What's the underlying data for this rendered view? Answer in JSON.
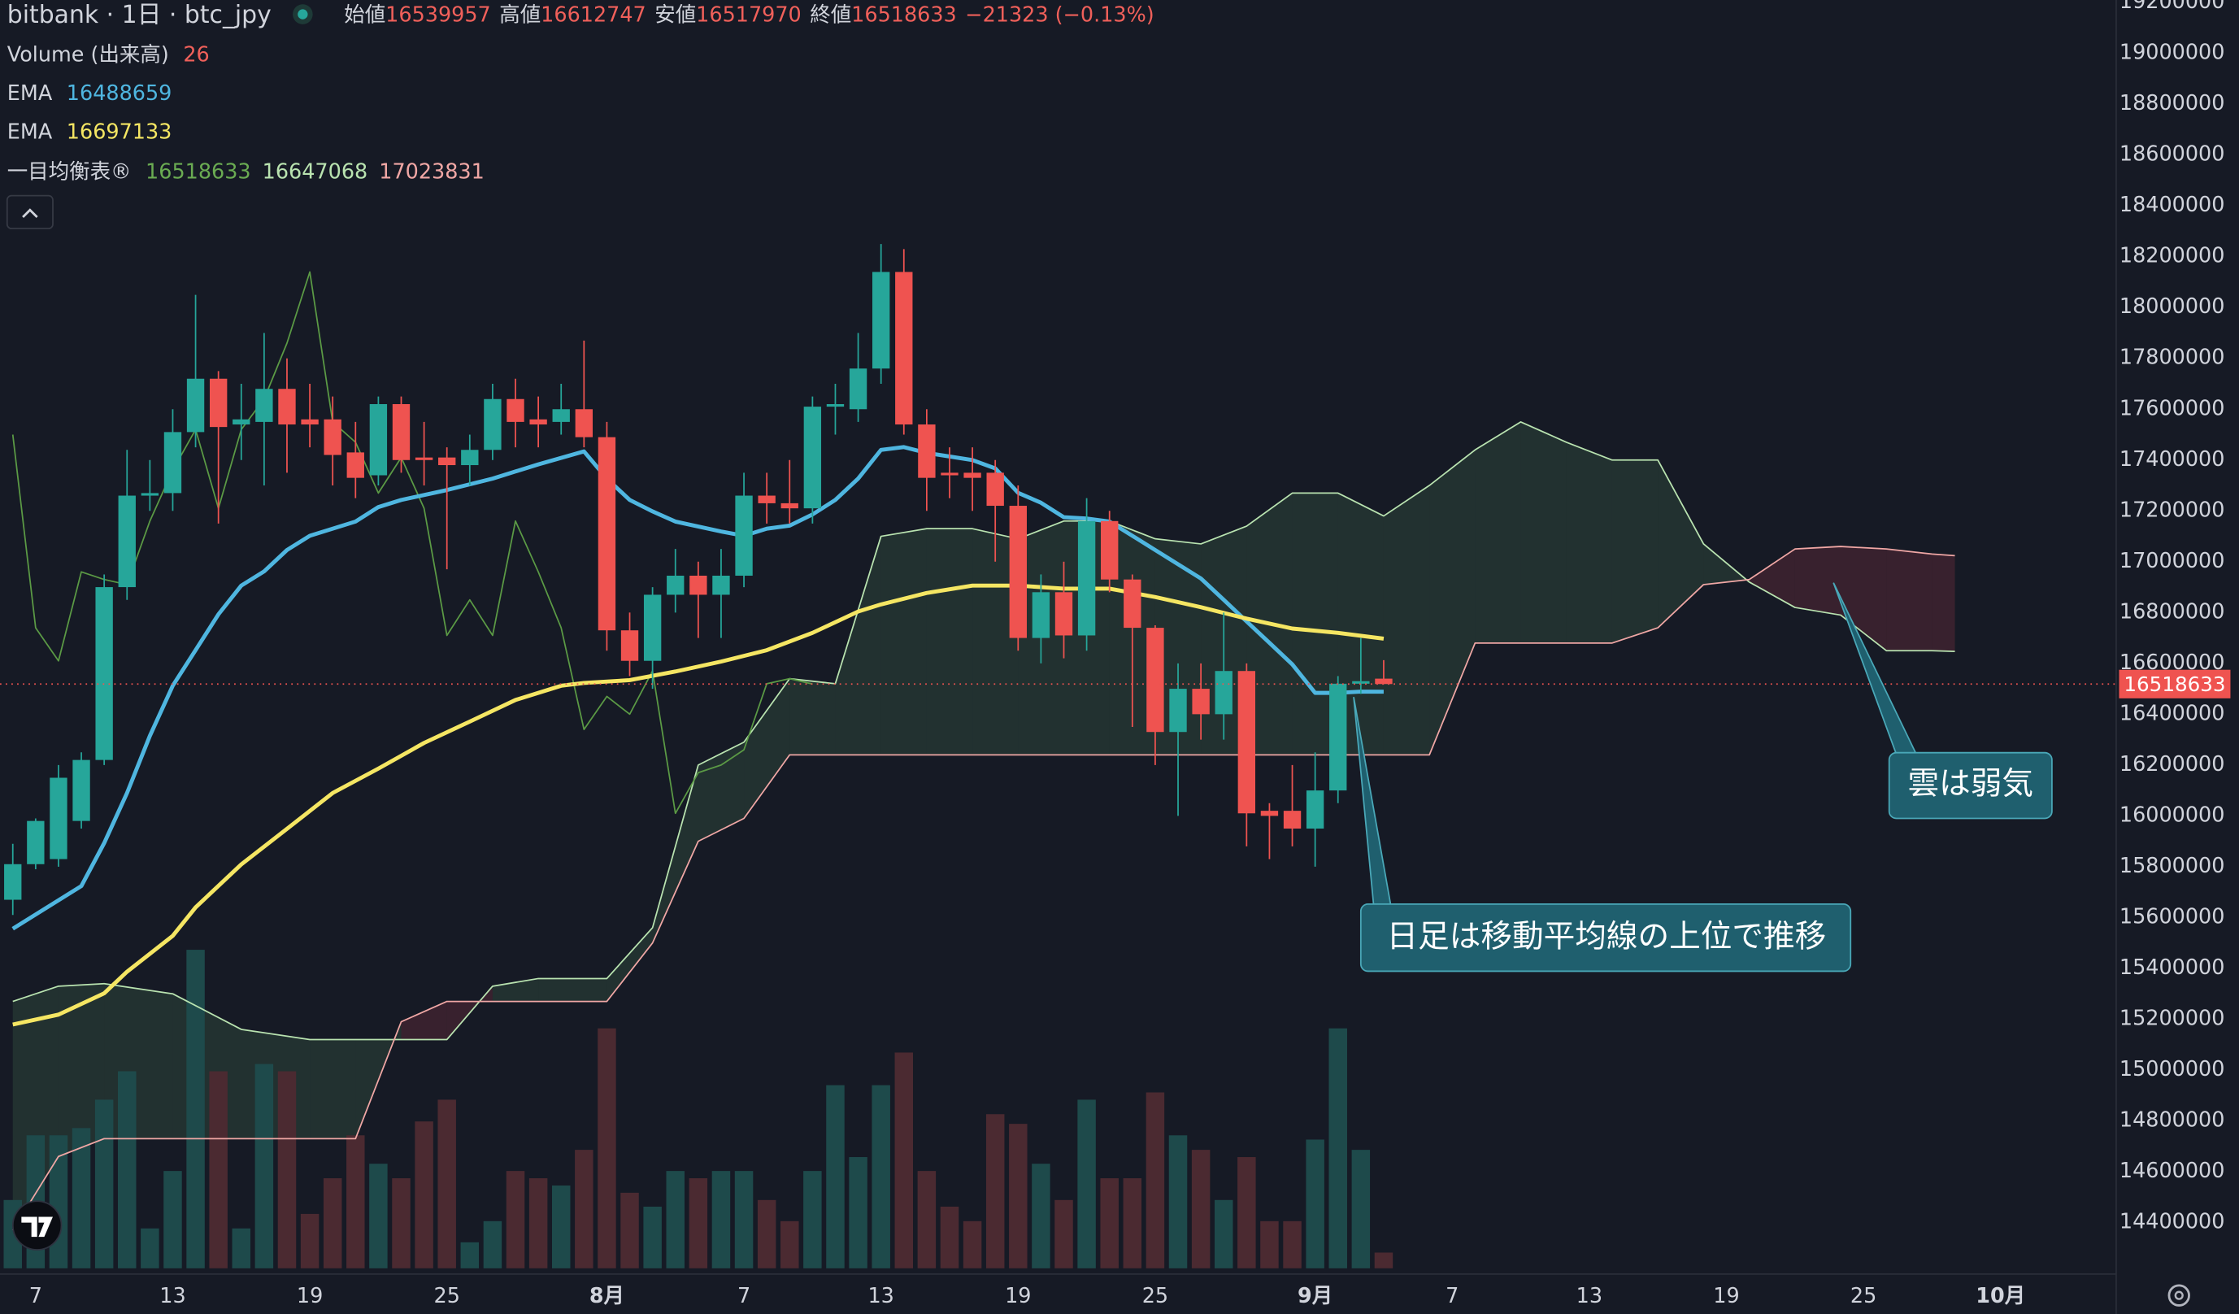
{
  "header": {
    "title": "bitbank · 1日 · btc_jpy",
    "open_label": "始値",
    "high_label": "高値",
    "low_label": "安値",
    "close_label": "終値",
    "change": "−21323 (−0.13%)",
    "volume_label": "Volume (出来高)"
  },
  "chart_data": {
    "type": "candlestick",
    "x": [
      5,
      6,
      7,
      8,
      9,
      10,
      11,
      12,
      13,
      14,
      15,
      16,
      17,
      18,
      19,
      20,
      21,
      22,
      23,
      24,
      25,
      26,
      27,
      28,
      29,
      30,
      31,
      32,
      33,
      34,
      35,
      36,
      37,
      38,
      39,
      40,
      41,
      42,
      43,
      44,
      45,
      46,
      47,
      48,
      49,
      50,
      51,
      52,
      53,
      54,
      55,
      56,
      57,
      58,
      59,
      60,
      61,
      62,
      63,
      64,
      65
    ],
    "open": [
      15670000,
      15810000,
      15830000,
      15980000,
      16220000,
      16900000,
      17260000,
      17270000,
      17510000,
      17720000,
      17540000,
      17550000,
      17680000,
      17560000,
      17560000,
      17430000,
      17340000,
      17620000,
      17410000,
      17410000,
      17380000,
      17440000,
      17640000,
      17560000,
      17550000,
      17600000,
      17490000,
      16730000,
      16610000,
      16870000,
      16945000,
      16870000,
      16945000,
      17260000,
      17230000,
      17210000,
      17610000,
      17600000,
      17760000,
      18140000,
      17540000,
      17350000,
      17350000,
      17350000,
      17220000,
      16700000,
      16880000,
      16710000,
      17160000,
      16930000,
      16740000,
      16330000,
      16500000,
      16400000,
      16570000,
      16020000,
      16020000,
      15950000,
      16100000,
      16520000,
      16539957
    ],
    "high": [
      15890000,
      15990000,
      16200000,
      16250000,
      16950000,
      17440000,
      17400000,
      17600000,
      18050000,
      17750000,
      17700000,
      17900000,
      17800000,
      17700000,
      17650000,
      17550000,
      17650000,
      17650000,
      17550000,
      17450000,
      17500000,
      17700000,
      17720000,
      17650000,
      17700000,
      17870000,
      17550000,
      16800000,
      16900000,
      17050000,
      17000000,
      17050000,
      17350000,
      17350000,
      17400000,
      17650000,
      17700000,
      17900000,
      18250000,
      18230000,
      17600000,
      17450000,
      17450000,
      17400000,
      17300000,
      16950000,
      17000000,
      17250000,
      17200000,
      16950000,
      16750000,
      16600000,
      16600000,
      16800000,
      16600000,
      16050000,
      16200000,
      16250000,
      16550000,
      16700000,
      16612747
    ],
    "low": [
      15610000,
      15790000,
      15800000,
      15950000,
      16200000,
      16850000,
      17200000,
      17200000,
      17450000,
      17150000,
      17400000,
      17300000,
      17350000,
      17450000,
      17300000,
      17250000,
      17300000,
      17350000,
      17300000,
      16970000,
      17300000,
      17400000,
      17450000,
      17450000,
      17500000,
      17450000,
      16650000,
      16550000,
      16500000,
      16800000,
      16700000,
      16700000,
      16900000,
      17150000,
      17150000,
      17150000,
      17500000,
      17550000,
      17700000,
      17500000,
      17200000,
      17250000,
      17200000,
      17000000,
      16650000,
      16600000,
      16620000,
      16650000,
      16880000,
      16350000,
      16200000,
      16000000,
      16300000,
      16300000,
      15880000,
      15830000,
      15880000,
      15800000,
      16050000,
      16480000,
      16517970
    ],
    "close": [
      15810000,
      15980000,
      16150000,
      16220000,
      16900000,
      17260000,
      17270000,
      17510000,
      17720000,
      17530000,
      17560000,
      17680000,
      17540000,
      17540000,
      17420000,
      17330000,
      17620000,
      17400000,
      17400000,
      17380000,
      17440000,
      17640000,
      17550000,
      17540000,
      17600000,
      17490000,
      16730000,
      16610000,
      16870000,
      16945000,
      16870000,
      16945000,
      17260000,
      17230000,
      17210000,
      17610000,
      17620000,
      17760000,
      18140000,
      17540000,
      17330000,
      17340000,
      17330000,
      17220000,
      16700000,
      16880000,
      16710000,
      17160000,
      16930000,
      16740000,
      16330000,
      16500000,
      16400000,
      16570000,
      16010000,
      16000000,
      15950000,
      16100000,
      16520000,
      16530000,
      16518633
    ],
    "volume": [
      113,
      220,
      220,
      232,
      279,
      326,
      66,
      161,
      527,
      326,
      66,
      338,
      326,
      90,
      149,
      220,
      173,
      149,
      243,
      279,
      43,
      78,
      161,
      149,
      137,
      196,
      397,
      125,
      102,
      161,
      149,
      161,
      161,
      113,
      78,
      161,
      303,
      184,
      303,
      357,
      161,
      102,
      78,
      255,
      239,
      173,
      113,
      279,
      149,
      149,
      291,
      220,
      196,
      113,
      184,
      78,
      78,
      213,
      397,
      196,
      26
    ],
    "up_color": "#26a69a",
    "down_color": "#ef5350",
    "volume_up_color": "#1e4a4b",
    "volume_down_color": "#4b2a31",
    "series": [
      {
        "name": "EMA",
        "color": "#4fb6e0",
        "x": [
          5,
          8,
          9,
          10,
          11,
          12,
          13,
          14,
          15,
          16,
          17,
          18,
          19,
          20,
          21,
          22,
          24,
          26,
          28,
          30,
          31,
          32,
          33,
          34,
          36,
          37,
          38,
          39,
          40,
          41,
          42,
          43,
          44,
          45,
          47,
          48,
          49,
          50,
          51,
          52,
          53,
          54,
          55,
          56,
          57,
          58,
          59,
          60,
          61,
          62,
          63,
          64,
          65
        ],
        "values": [
          15556000,
          15724000,
          15893000,
          16090000,
          16315000,
          16512000,
          16652000,
          16793000,
          16906000,
          16962000,
          17046000,
          17102000,
          17130000,
          17158000,
          17215000,
          17243000,
          17282000,
          17327000,
          17383000,
          17434000,
          17327000,
          17243000,
          17198000,
          17158000,
          17119000,
          17102000,
          17130000,
          17142000,
          17186000,
          17243000,
          17327000,
          17440000,
          17451000,
          17428000,
          17400000,
          17367000,
          17271000,
          17232000,
          17175000,
          17170000,
          17158000,
          17102000,
          17046000,
          16990000,
          16934000,
          16850000,
          16765000,
          16681000,
          16596000,
          16484000,
          16484000,
          16489000,
          16488659
        ]
      },
      {
        "name": "EMA",
        "color": "#f5e663",
        "x": [
          5,
          7,
          9,
          10,
          12,
          13,
          15,
          17,
          19,
          21,
          23,
          25,
          27,
          29,
          30,
          32,
          34,
          36,
          38,
          40,
          42,
          43,
          45,
          47,
          49,
          51,
          53,
          55,
          57,
          59,
          61,
          63,
          65
        ],
        "values": [
          15179000,
          15218000,
          15302000,
          15387000,
          15528000,
          15640000,
          15809000,
          15949000,
          16090000,
          16186000,
          16287000,
          16371000,
          16456000,
          16512000,
          16523000,
          16534000,
          16568000,
          16607000,
          16652000,
          16720000,
          16804000,
          16832000,
          16877000,
          16906000,
          16906000,
          16894000,
          16894000,
          16861000,
          16821000,
          16776000,
          16737000,
          16720000,
          16697133
        ]
      }
    ],
    "ichimoku": {
      "name": "一目均衡表®",
      "cloud_up_color": "rgba(67,110,80,0.28)",
      "cloud_down_color": "rgba(120,50,62,0.35)",
      "lagging": {
        "color": "#5b9a45",
        "x": [
          5,
          6,
          7,
          8,
          9,
          10,
          11,
          12,
          13,
          14,
          15,
          16,
          17,
          18,
          19,
          20,
          21,
          22,
          23,
          24,
          25,
          26,
          27,
          28,
          29,
          30,
          31,
          32,
          33,
          34,
          35,
          36,
          37,
          38,
          39,
          40
        ],
        "values": [
          17500000,
          16740000,
          16610000,
          16960000,
          16930000,
          16910000,
          17160000,
          17360000,
          17520000,
          17210000,
          17520000,
          17640000,
          17860000,
          18140000,
          17550000,
          17470000,
          17270000,
          17410000,
          17210000,
          16710000,
          16850000,
          16710000,
          17160000,
          16960000,
          16740000,
          16340000,
          16470000,
          16400000,
          16570000,
          16010000,
          16170000,
          16200000,
          16260000,
          16520000,
          16540000,
          16518633
        ]
      },
      "span_a": {
        "color": "#b9e3b0",
        "x": [
          5,
          7,
          9,
          12,
          15,
          18,
          20,
          22,
          24,
          26,
          28,
          31,
          33,
          35,
          37,
          39,
          41,
          43,
          45,
          47,
          49,
          51,
          53,
          55,
          57,
          59,
          61,
          63,
          65,
          67,
          69,
          71,
          73,
          75,
          77,
          79,
          81,
          83,
          85,
          87,
          89,
          90
        ],
        "values": [
          15270000,
          15330000,
          15340000,
          15300000,
          15160000,
          15120000,
          15120000,
          15120000,
          15120000,
          15330000,
          15360000,
          15360000,
          15560000,
          16200000,
          16290000,
          16540000,
          16520000,
          17100000,
          17130000,
          17130000,
          17090000,
          17160000,
          17160000,
          17090000,
          17070000,
          17140000,
          17270000,
          17270000,
          17180000,
          17300000,
          17440000,
          17550000,
          17470000,
          17400000,
          17400000,
          17070000,
          16920000,
          16820000,
          16790000,
          16650000,
          16650000,
          16647068
        ]
      },
      "span_b": {
        "color": "#f0a7a5",
        "x": [
          5,
          7,
          9,
          12,
          15,
          18,
          20,
          22,
          24,
          26,
          28,
          31,
          33,
          35,
          37,
          39,
          41,
          43,
          45,
          47,
          49,
          51,
          53,
          55,
          57,
          59,
          61,
          63,
          65,
          67,
          69,
          71,
          73,
          75,
          77,
          79,
          81,
          83,
          85,
          87,
          89,
          90
        ],
        "values": [
          14370000,
          14660000,
          14730000,
          14730000,
          14730000,
          14730000,
          14730000,
          15190000,
          15270000,
          15270000,
          15270000,
          15270000,
          15500000,
          15900000,
          15990000,
          16240000,
          16240000,
          16240000,
          16240000,
          16240000,
          16240000,
          16240000,
          16240000,
          16240000,
          16240000,
          16240000,
          16240000,
          16240000,
          16240000,
          16240000,
          16680000,
          16680000,
          16680000,
          16680000,
          16740000,
          16910000,
          16930000,
          17050000,
          17060000,
          17050000,
          17030000,
          17023831
        ]
      }
    },
    "xlim": [
      4.44,
      97.06
    ],
    "xticks": [
      {
        "value": 6,
        "label": "7"
      },
      {
        "value": 12,
        "label": "13"
      },
      {
        "value": 18,
        "label": "19"
      },
      {
        "value": 24,
        "label": "25"
      },
      {
        "value": 31,
        "label": "8月"
      },
      {
        "value": 37,
        "label": "7"
      },
      {
        "value": 43,
        "label": "13"
      },
      {
        "value": 49,
        "label": "19"
      },
      {
        "value": 55,
        "label": "25"
      },
      {
        "value": 62,
        "label": "9月"
      },
      {
        "value": 68,
        "label": "7"
      },
      {
        "value": 74,
        "label": "13"
      },
      {
        "value": 80,
        "label": "19"
      },
      {
        "value": 86,
        "label": "25"
      },
      {
        "value": 92,
        "label": "10月"
      }
    ],
    "ylim": [
      14220000,
      19210000
    ],
    "yticks": [
      14400000,
      14600000,
      14800000,
      15000000,
      15200000,
      15400000,
      15600000,
      15800000,
      16000000,
      16200000,
      16400000,
      16600000,
      16800000,
      17000000,
      17200000,
      17400000,
      17600000,
      17800000,
      18000000,
      18200000,
      18400000,
      18600000,
      18800000,
      19000000,
      19200000
    ],
    "annotations": [
      {
        "text": "日足は移動平均線の上位で推移"
      },
      {
        "text": "雲は弱気"
      }
    ]
  }
}
